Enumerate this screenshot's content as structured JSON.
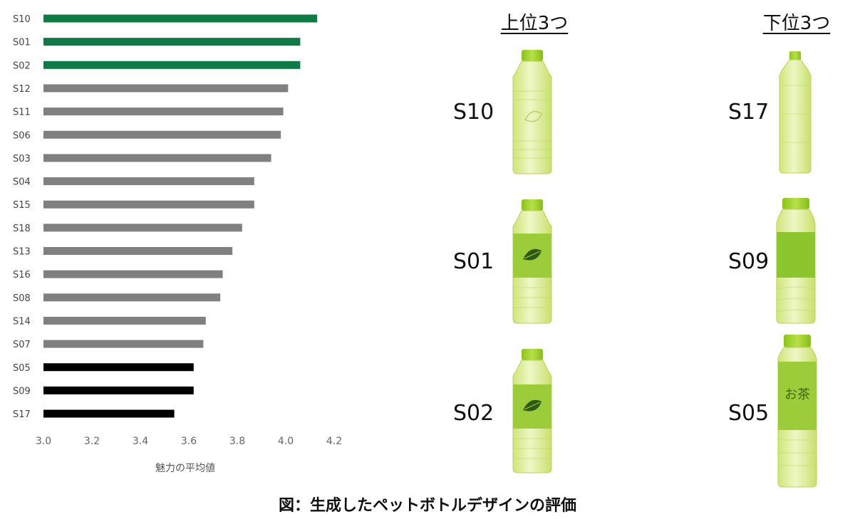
{
  "chart_data": {
    "type": "bar",
    "orientation": "horizontal",
    "categories": [
      "S10",
      "S01",
      "S02",
      "S12",
      "S11",
      "S06",
      "S03",
      "S04",
      "S15",
      "S18",
      "S13",
      "S16",
      "S08",
      "S14",
      "S07",
      "S05",
      "S09",
      "S17"
    ],
    "values": [
      4.13,
      4.06,
      4.06,
      4.01,
      3.99,
      3.98,
      3.94,
      3.87,
      3.87,
      3.82,
      3.78,
      3.74,
      3.73,
      3.67,
      3.66,
      3.62,
      3.62,
      3.54
    ],
    "groups": [
      "top",
      "top",
      "top",
      "mid",
      "mid",
      "mid",
      "mid",
      "mid",
      "mid",
      "mid",
      "mid",
      "mid",
      "mid",
      "mid",
      "mid",
      "bottom",
      "bottom",
      "bottom"
    ],
    "colors": {
      "top": "#0f7a45",
      "mid": "#808080",
      "bottom": "#000000"
    },
    "xlim": [
      3.0,
      4.2
    ],
    "xticks": [
      "3.0",
      "3.2",
      "3.4",
      "3.6",
      "3.8",
      "4.0",
      "4.2"
    ],
    "xlabel": "魅力の平均値",
    "grid": false
  },
  "top3": {
    "heading": "上位3つ",
    "items": [
      {
        "label": "S10",
        "style": "plain-leaf"
      },
      {
        "label": "S01",
        "style": "leaf-label"
      },
      {
        "label": "S02",
        "style": "leaf-label"
      }
    ]
  },
  "bottom3": {
    "heading": "下位3つ",
    "items": [
      {
        "label": "S17",
        "style": "plain"
      },
      {
        "label": "S09",
        "style": "band"
      },
      {
        "label": "S05",
        "style": "tall-text",
        "bottle_text": "お茶"
      }
    ]
  },
  "caption": "図：生成したペットボトルデザインの評価"
}
